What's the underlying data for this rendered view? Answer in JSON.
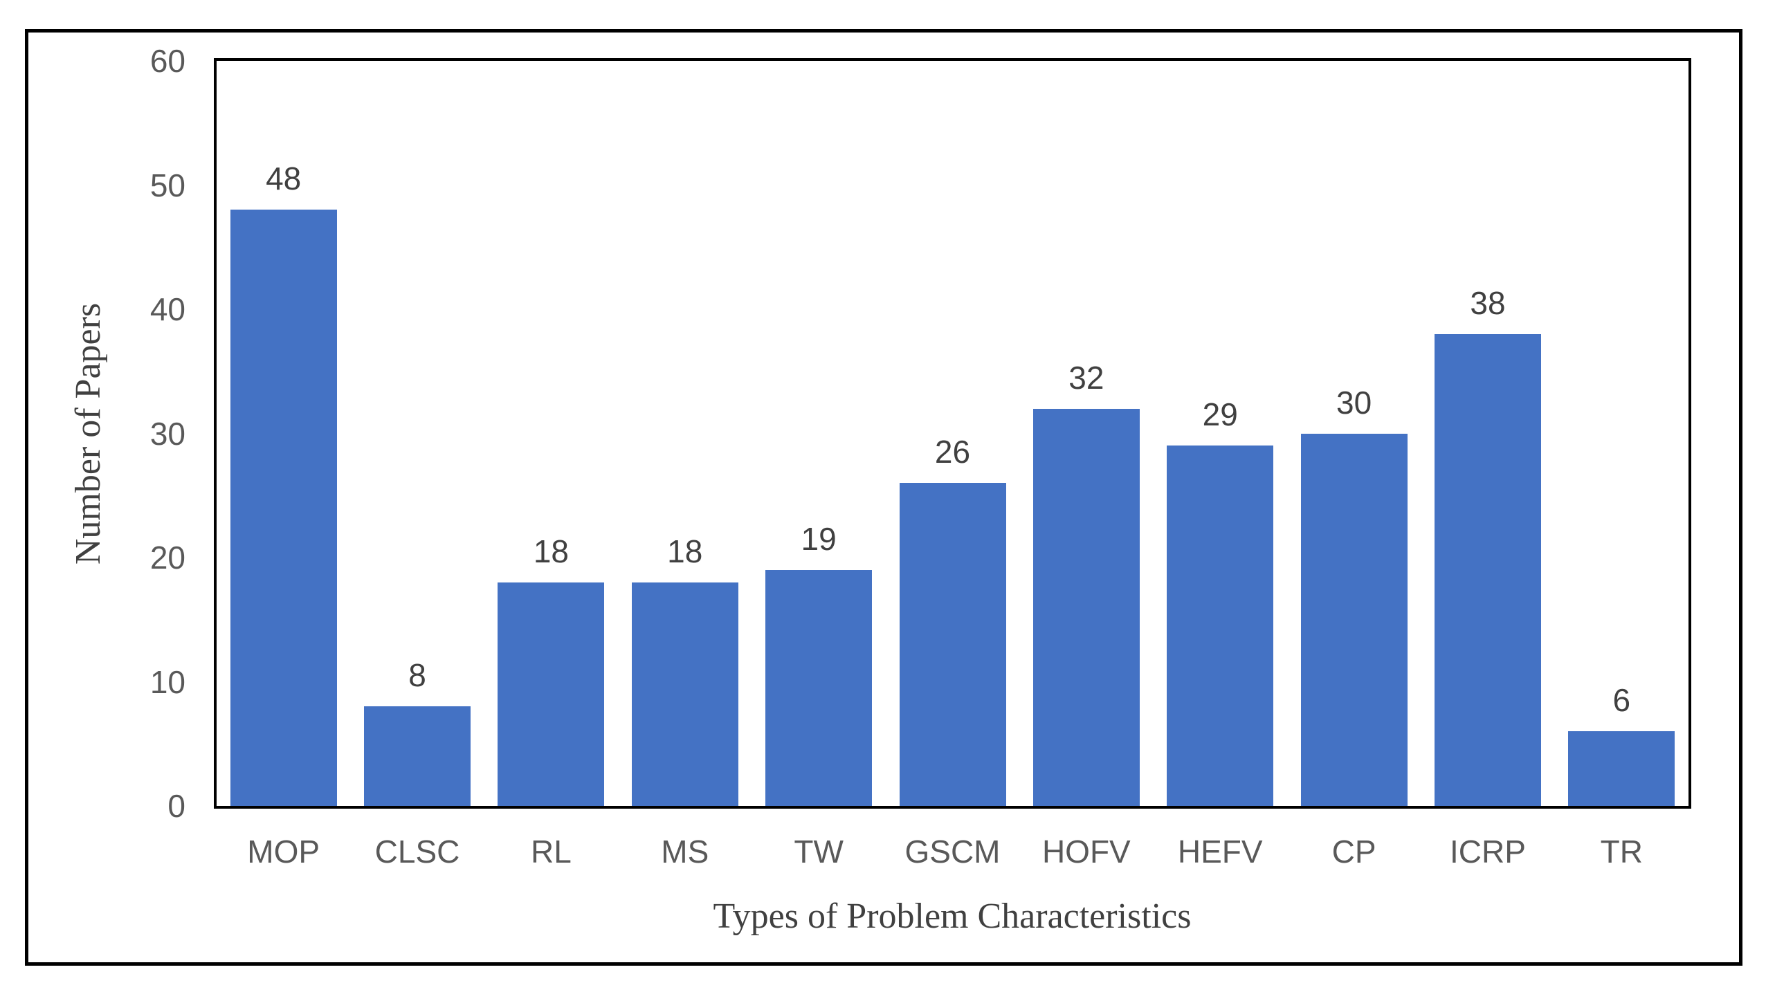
{
  "figure": {
    "background_color": "#ffffff",
    "border_color": "#000000"
  },
  "chart_data": {
    "type": "bar",
    "title": "",
    "categories": [
      "MOP",
      "CLSC",
      "RL",
      "MS",
      "TW",
      "GSCM",
      "HOFV",
      "HEFV",
      "CP",
      "ICRP",
      "TR"
    ],
    "values": [
      48,
      8,
      18,
      18,
      19,
      26,
      32,
      29,
      30,
      38,
      6
    ],
    "xlabel": "Types of Problem Characteristics",
    "ylabel": "Number of Papers",
    "ylim": [
      0,
      60
    ],
    "yticks": [
      0,
      10,
      20,
      30,
      40,
      50,
      60
    ],
    "bar_color": "#4472C4",
    "data_label_color": "#404040",
    "tick_label_color": "#595959",
    "axis_title_color": "#404040",
    "axis_line_color": "#000000",
    "grid": false,
    "legend_position": "none",
    "data_labels_shown": true
  }
}
